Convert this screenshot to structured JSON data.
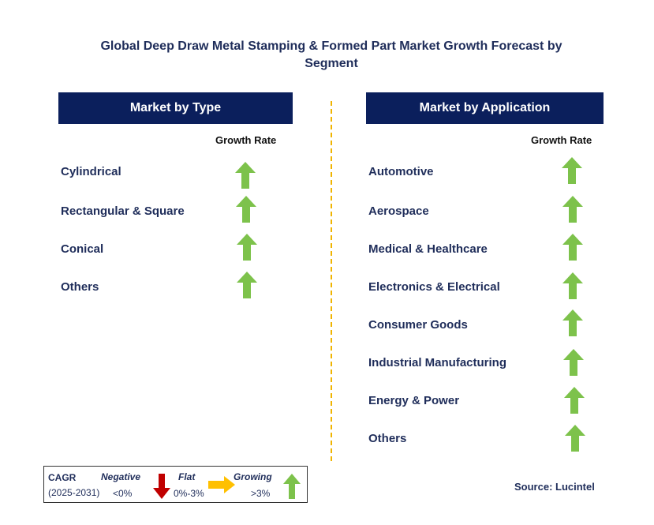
{
  "title": "Global Deep Draw Metal Stamping & Formed Part Market Growth Forecast by Segment",
  "left_panel": {
    "header": "Market by Type",
    "growth_label": "Growth Rate",
    "items": [
      "Cylindrical",
      "Rectangular & Square",
      "Conical",
      "Others"
    ]
  },
  "right_panel": {
    "header": "Market by Application",
    "growth_label": "Growth Rate",
    "items": [
      "Automotive",
      "Aerospace",
      "Medical & Healthcare",
      "Electronics & Electrical",
      "Consumer Goods",
      "Industrial Manufacturing",
      "Energy & Power",
      "Others"
    ]
  },
  "legend": {
    "cagr": "CAGR",
    "period": "(2025-2031)",
    "negative": "Negative",
    "negative_range": "<0%",
    "flat": "Flat",
    "flat_range": "0%-3%",
    "growing": "Growing",
    "growing_range": ">3%"
  },
  "source": "Source: Lucintel",
  "colors": {
    "header_bg": "#0b1f5c",
    "arrow_up": "#7dc24b",
    "arrow_down": "#c00000",
    "arrow_flat": "#ffc000",
    "divider": "#f0b400"
  }
}
